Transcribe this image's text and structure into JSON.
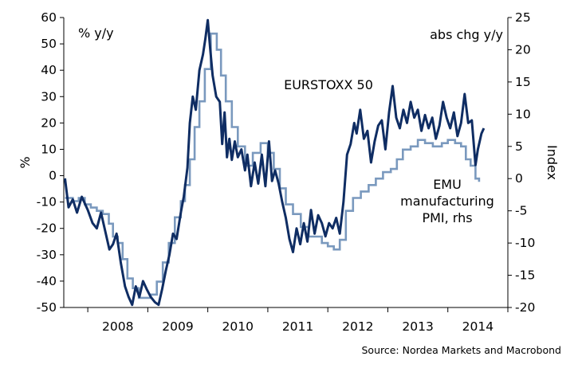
{
  "chart_data": {
    "type": "line",
    "title": "",
    "xlabel": "",
    "ylabel": "%",
    "y2label": "Index",
    "left_unit": "% y/y",
    "right_unit": "abs chg y/y",
    "source": "Source: Nordea Markets and Macrobond",
    "colors": {
      "eurostoxx": "#0f2d63",
      "pmi": "#7a99be",
      "axis": "#000000"
    },
    "x_range": [
      2007.6,
      2015.0
    ],
    "x_ticks": [
      {
        "label": "2008",
        "at": 2008.5
      },
      {
        "label": "2009",
        "at": 2009.5
      },
      {
        "label": "2010",
        "at": 2010.5
      },
      {
        "label": "2011",
        "at": 2011.5
      },
      {
        "label": "2012",
        "at": 2012.5
      },
      {
        "label": "2013",
        "at": 2013.5
      },
      {
        "label": "2014",
        "at": 2014.5
      }
    ],
    "x_boundaries": [
      2008,
      2009,
      2010,
      2011,
      2012,
      2013,
      2014,
      2015
    ],
    "y_left": {
      "range": [
        -50,
        60
      ],
      "ticks": [
        -50,
        -40,
        -30,
        -20,
        -10,
        0,
        10,
        20,
        30,
        40,
        50,
        60
      ]
    },
    "y_right": {
      "range": [
        -20,
        25
      ],
      "ticks": [
        -20,
        -15,
        -10,
        -5,
        0,
        5,
        10,
        15,
        20,
        25
      ]
    },
    "series": [
      {
        "name": "EURSTOXX 50",
        "axis": "left",
        "label_lines": [
          "EURSTOXX 50"
        ],
        "points": [
          [
            2007.62,
            -1
          ],
          [
            2007.68,
            -12
          ],
          [
            2007.75,
            -9
          ],
          [
            2007.82,
            -14
          ],
          [
            2007.9,
            -8
          ],
          [
            2008.0,
            -13
          ],
          [
            2008.08,
            -18
          ],
          [
            2008.15,
            -20
          ],
          [
            2008.22,
            -14
          ],
          [
            2008.3,
            -22
          ],
          [
            2008.36,
            -28
          ],
          [
            2008.42,
            -26
          ],
          [
            2008.48,
            -22
          ],
          [
            2008.55,
            -33
          ],
          [
            2008.62,
            -42
          ],
          [
            2008.68,
            -46
          ],
          [
            2008.74,
            -49
          ],
          [
            2008.8,
            -42
          ],
          [
            2008.86,
            -46
          ],
          [
            2008.92,
            -40
          ],
          [
            2008.98,
            -43
          ],
          [
            2009.05,
            -46
          ],
          [
            2009.12,
            -48
          ],
          [
            2009.18,
            -49
          ],
          [
            2009.24,
            -43
          ],
          [
            2009.3,
            -36
          ],
          [
            2009.36,
            -30
          ],
          [
            2009.42,
            -22
          ],
          [
            2009.48,
            -24
          ],
          [
            2009.55,
            -14
          ],
          [
            2009.6,
            -8
          ],
          [
            2009.66,
            3
          ],
          [
            2009.7,
            20
          ],
          [
            2009.75,
            30
          ],
          [
            2009.8,
            25
          ],
          [
            2009.86,
            40
          ],
          [
            2009.92,
            46
          ],
          [
            2009.96,
            52
          ],
          [
            2010.0,
            59
          ],
          [
            2010.04,
            48
          ],
          [
            2010.08,
            38
          ],
          [
            2010.14,
            30
          ],
          [
            2010.2,
            28
          ],
          [
            2010.24,
            12
          ],
          [
            2010.28,
            24
          ],
          [
            2010.32,
            7
          ],
          [
            2010.36,
            14
          ],
          [
            2010.4,
            6
          ],
          [
            2010.45,
            13
          ],
          [
            2010.5,
            7
          ],
          [
            2010.56,
            10
          ],
          [
            2010.62,
            2
          ],
          [
            2010.66,
            8
          ],
          [
            2010.72,
            -4
          ],
          [
            2010.78,
            5
          ],
          [
            2010.84,
            -3
          ],
          [
            2010.9,
            8
          ],
          [
            2010.96,
            -4
          ],
          [
            2011.02,
            13
          ],
          [
            2011.07,
            -2
          ],
          [
            2011.12,
            2
          ],
          [
            2011.18,
            -3
          ],
          [
            2011.24,
            -10
          ],
          [
            2011.3,
            -16
          ],
          [
            2011.36,
            -24
          ],
          [
            2011.42,
            -29
          ],
          [
            2011.48,
            -20
          ],
          [
            2011.54,
            -26
          ],
          [
            2011.6,
            -18
          ],
          [
            2011.66,
            -25
          ],
          [
            2011.72,
            -13
          ],
          [
            2011.78,
            -22
          ],
          [
            2011.84,
            -15
          ],
          [
            2011.9,
            -18
          ],
          [
            2011.96,
            -23
          ],
          [
            2012.02,
            -18
          ],
          [
            2012.08,
            -20
          ],
          [
            2012.14,
            -16
          ],
          [
            2012.2,
            -22
          ],
          [
            2012.26,
            -10
          ],
          [
            2012.32,
            8
          ],
          [
            2012.38,
            12
          ],
          [
            2012.44,
            20
          ],
          [
            2012.48,
            16
          ],
          [
            2012.54,
            25
          ],
          [
            2012.6,
            14
          ],
          [
            2012.66,
            17
          ],
          [
            2012.72,
            5
          ],
          [
            2012.78,
            13
          ],
          [
            2012.84,
            19
          ],
          [
            2012.9,
            21
          ],
          [
            2012.96,
            10
          ],
          [
            2013.02,
            24
          ],
          [
            2013.08,
            34
          ],
          [
            2013.14,
            22
          ],
          [
            2013.2,
            18
          ],
          [
            2013.26,
            25
          ],
          [
            2013.32,
            20
          ],
          [
            2013.38,
            28
          ],
          [
            2013.44,
            22
          ],
          [
            2013.5,
            25
          ],
          [
            2013.56,
            17
          ],
          [
            2013.62,
            23
          ],
          [
            2013.68,
            18
          ],
          [
            2013.74,
            22
          ],
          [
            2013.8,
            14
          ],
          [
            2013.86,
            19
          ],
          [
            2013.92,
            28
          ],
          [
            2013.98,
            22
          ],
          [
            2014.04,
            18
          ],
          [
            2014.1,
            24
          ],
          [
            2014.16,
            15
          ],
          [
            2014.22,
            20
          ],
          [
            2014.28,
            31
          ],
          [
            2014.34,
            20
          ],
          [
            2014.4,
            21
          ],
          [
            2014.46,
            4
          ],
          [
            2014.5,
            10
          ],
          [
            2014.56,
            16
          ],
          [
            2014.6,
            18
          ]
        ]
      },
      {
        "name": "EMU manufacturing PMI, rhs",
        "axis": "right",
        "label_lines": [
          "EMU",
          "manufacturing",
          "PMI, rhs"
        ],
        "points": [
          [
            2007.62,
            -3
          ],
          [
            2007.75,
            -3.5
          ],
          [
            2007.85,
            -3
          ],
          [
            2007.95,
            -4
          ],
          [
            2008.05,
            -4.5
          ],
          [
            2008.15,
            -5
          ],
          [
            2008.25,
            -5.5
          ],
          [
            2008.35,
            -7
          ],
          [
            2008.42,
            -9
          ],
          [
            2008.5,
            -10
          ],
          [
            2008.58,
            -12.5
          ],
          [
            2008.66,
            -15.5
          ],
          [
            2008.75,
            -17
          ],
          [
            2008.85,
            -18.5
          ],
          [
            2008.95,
            -18.5
          ],
          [
            2009.05,
            -18
          ],
          [
            2009.15,
            -16
          ],
          [
            2009.25,
            -13
          ],
          [
            2009.35,
            -10
          ],
          [
            2009.45,
            -6
          ],
          [
            2009.55,
            -3.5
          ],
          [
            2009.62,
            -1
          ],
          [
            2009.7,
            3
          ],
          [
            2009.78,
            8
          ],
          [
            2009.86,
            12
          ],
          [
            2009.95,
            17
          ],
          [
            2010.05,
            22.5
          ],
          [
            2010.15,
            20
          ],
          [
            2010.22,
            16
          ],
          [
            2010.3,
            12
          ],
          [
            2010.4,
            8
          ],
          [
            2010.5,
            5
          ],
          [
            2010.62,
            2
          ],
          [
            2010.75,
            4
          ],
          [
            2010.88,
            5.5
          ],
          [
            2011.0,
            4
          ],
          [
            2011.1,
            1.5
          ],
          [
            2011.2,
            -1.5
          ],
          [
            2011.3,
            -4
          ],
          [
            2011.42,
            -5.5
          ],
          [
            2011.55,
            -7.5
          ],
          [
            2011.68,
            -9
          ],
          [
            2011.8,
            -9
          ],
          [
            2011.9,
            -10
          ],
          [
            2012.0,
            -10.5
          ],
          [
            2012.1,
            -11
          ],
          [
            2012.2,
            -9.5
          ],
          [
            2012.3,
            -5
          ],
          [
            2012.42,
            -3
          ],
          [
            2012.55,
            -2
          ],
          [
            2012.68,
            -1
          ],
          [
            2012.8,
            0
          ],
          [
            2012.92,
            1
          ],
          [
            2013.05,
            1.5
          ],
          [
            2013.15,
            3
          ],
          [
            2013.25,
            4.5
          ],
          [
            2013.38,
            5
          ],
          [
            2013.5,
            6
          ],
          [
            2013.62,
            5.5
          ],
          [
            2013.75,
            5
          ],
          [
            2013.9,
            5.5
          ],
          [
            2014.0,
            6
          ],
          [
            2014.12,
            5.5
          ],
          [
            2014.22,
            5
          ],
          [
            2014.3,
            3
          ],
          [
            2014.38,
            2
          ],
          [
            2014.46,
            0
          ],
          [
            2014.52,
            -0.5
          ]
        ]
      }
    ]
  }
}
